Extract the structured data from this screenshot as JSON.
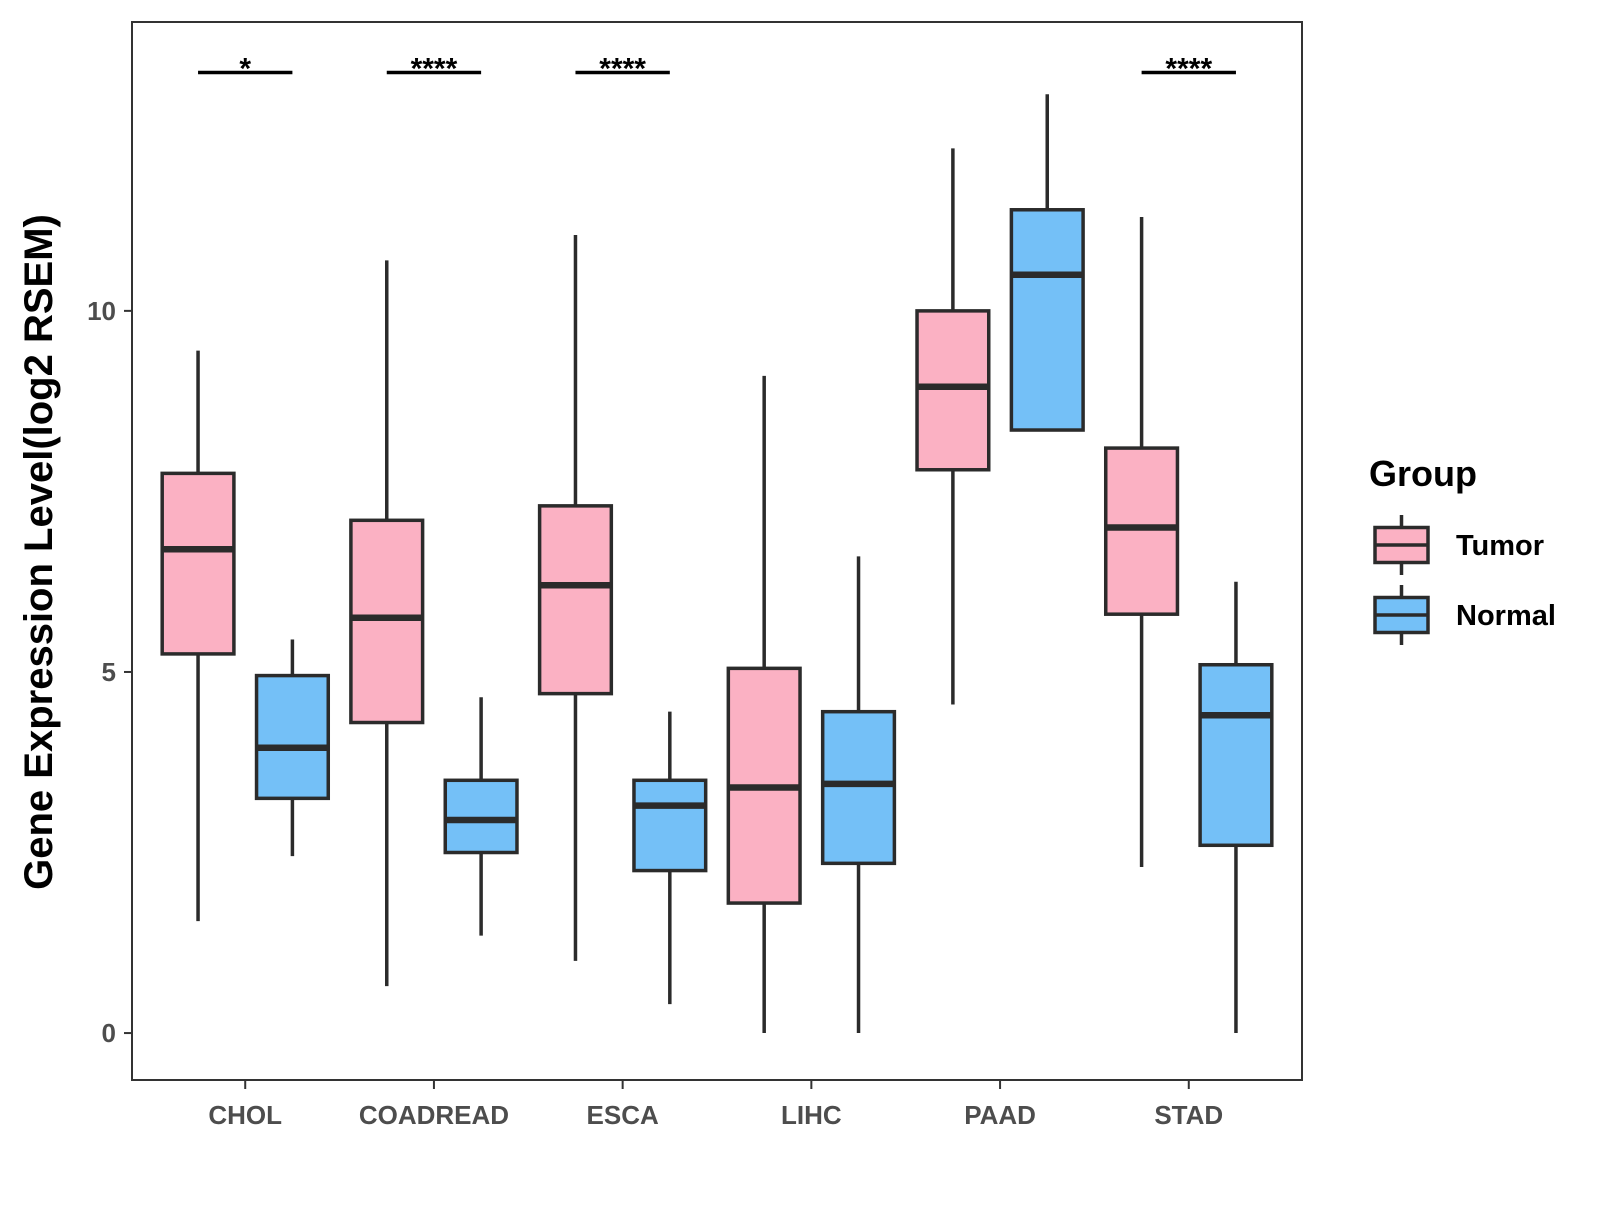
{
  "chart_data": {
    "type": "boxplot",
    "title": "",
    "xlabel": "",
    "ylabel": "Gene Expression Level(log2 RSEM)",
    "ylim": [
      -0.65,
      14.0
    ],
    "yticks": [
      0,
      5,
      10
    ],
    "grid": false,
    "categories": [
      "CHOL",
      "COADREAD",
      "ESCA",
      "LIHC",
      "PAAD",
      "STAD"
    ],
    "legend": {
      "title": "Group",
      "placement": "right",
      "items": [
        {
          "label": "Tumor",
          "color": "#FBB1C3"
        },
        {
          "label": "Normal",
          "color": "#74C0F7"
        }
      ]
    },
    "series": [
      {
        "name": "Tumor",
        "color": "#FBB1C3",
        "boxes": [
          {
            "min": 1.55,
            "q1": 5.25,
            "median": 6.7,
            "q3": 7.75,
            "max": 9.45
          },
          {
            "min": 0.65,
            "q1": 4.3,
            "median": 5.75,
            "q3": 7.1,
            "max": 10.7
          },
          {
            "min": 1.0,
            "q1": 4.7,
            "median": 6.2,
            "q3": 7.3,
            "max": 11.05
          },
          {
            "min": 0.0,
            "q1": 1.8,
            "median": 3.4,
            "q3": 5.05,
            "max": 9.1
          },
          {
            "min": 4.55,
            "q1": 7.8,
            "median": 8.95,
            "q3": 10.0,
            "max": 12.25
          },
          {
            "min": 2.3,
            "q1": 5.8,
            "median": 7.0,
            "q3": 8.1,
            "max": 11.3
          }
        ]
      },
      {
        "name": "Normal",
        "color": "#74C0F7",
        "boxes": [
          {
            "min": 2.45,
            "q1": 3.25,
            "median": 3.95,
            "q3": 4.95,
            "max": 5.45
          },
          {
            "min": 1.35,
            "q1": 2.5,
            "median": 2.95,
            "q3": 3.5,
            "max": 4.65
          },
          {
            "min": 0.4,
            "q1": 2.25,
            "median": 3.15,
            "q3": 3.5,
            "max": 4.45
          },
          {
            "min": 0.0,
            "q1": 2.35,
            "median": 3.45,
            "q3": 4.45,
            "max": 6.6
          },
          {
            "min": 8.35,
            "q1": 8.35,
            "median": 10.5,
            "q3": 11.4,
            "max": 13.0
          },
          {
            "min": 0.0,
            "q1": 2.6,
            "median": 4.4,
            "q3": 5.1,
            "max": 6.25
          }
        ]
      }
    ],
    "significance": [
      {
        "category": "CHOL",
        "label": "*"
      },
      {
        "category": "COADREAD",
        "label": "****"
      },
      {
        "category": "ESCA",
        "label": "****"
      },
      {
        "category": "LIHC",
        "label": ""
      },
      {
        "category": "PAAD",
        "label": ""
      },
      {
        "category": "STAD",
        "label": "****"
      }
    ],
    "significance_y": 13.3
  }
}
